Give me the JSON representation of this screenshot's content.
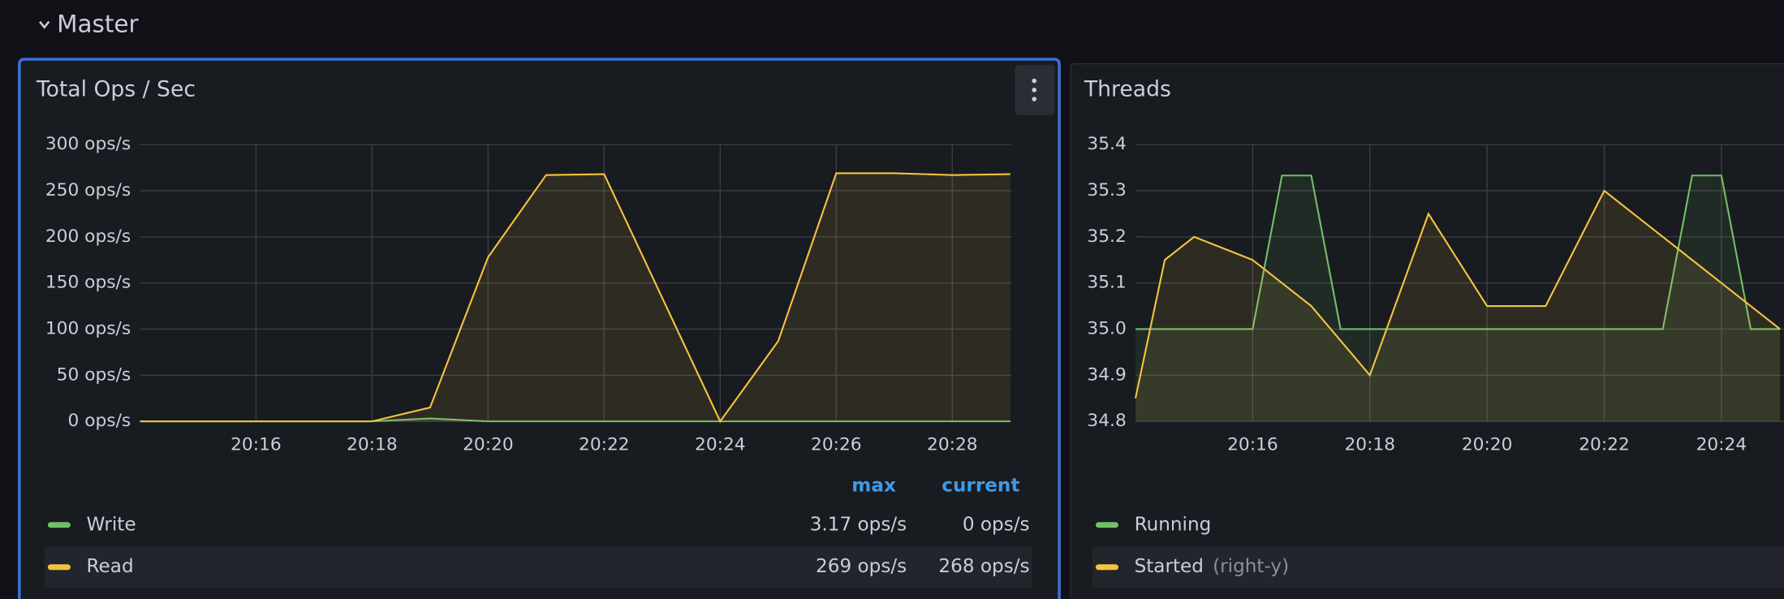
{
  "section_title": "Master",
  "chart_data": [
    {
      "type": "line",
      "title": "Total Ops / Sec",
      "categories": [
        null,
        null,
        "20:16",
        null,
        "20:18",
        null,
        "20:20",
        null,
        "20:22",
        null,
        "20:24",
        null,
        "20:26",
        null,
        "20:28",
        null
      ],
      "ylim": [
        0,
        300
      ],
      "yticks": [
        {
          "value": 0,
          "label": "0 ops/s"
        },
        {
          "value": 50,
          "label": "50 ops/s"
        },
        {
          "value": 100,
          "label": "100 ops/s"
        },
        {
          "value": 150,
          "label": "150 ops/s"
        },
        {
          "value": 200,
          "label": "200 ops/s"
        },
        {
          "value": 250,
          "label": "250 ops/s"
        },
        {
          "value": 300,
          "label": "300 ops/s"
        }
      ],
      "grid": true,
      "legend_columns": [
        "max",
        "current"
      ],
      "series": [
        {
          "name": "Write",
          "color": "#73bf69",
          "values": [
            0,
            0,
            0,
            0,
            0,
            3.17,
            0,
            0,
            0,
            0,
            0,
            0,
            0,
            0,
            0,
            0
          ],
          "stats": {
            "values": [
              3.17,
              0
            ],
            "labels": [
              "3.17 ops/s",
              "0 ops/s"
            ]
          }
        },
        {
          "name": "Read",
          "color": "#f5c342",
          "values": [
            0,
            0,
            0,
            0,
            0,
            15,
            178,
            267,
            268,
            134,
            0,
            87,
            269,
            269,
            267,
            268
          ],
          "stats": {
            "values": [
              269,
              268
            ],
            "labels": [
              "269 ops/s",
              "268 ops/s"
            ]
          }
        }
      ]
    },
    {
      "type": "line",
      "title": "Threads",
      "categories": [
        null,
        null,
        null,
        null,
        "20:16",
        null,
        null,
        null,
        "20:18",
        null,
        null,
        null,
        "20:20",
        null,
        null,
        null,
        "20:22",
        null,
        null,
        null,
        "20:24",
        null,
        null
      ],
      "ylim": [
        34.8,
        35.4
      ],
      "yticks": [
        34.8,
        34.9,
        {
          "value": 35,
          "label": "35.0"
        },
        35.1,
        35.2,
        35.3,
        35.4
      ],
      "y2lim": [
        34.8,
        35.4
      ],
      "grid": true,
      "series": [
        {
          "name": "Running",
          "color": "#73bf69",
          "values": [
            35,
            35,
            35,
            35,
            35,
            35.333,
            35.333,
            35,
            35,
            35,
            35,
            35,
            35,
            35,
            35,
            35,
            35,
            35,
            35,
            35.333,
            35.333,
            35,
            35
          ]
        },
        {
          "name": "Started",
          "axis": "y2",
          "axis_note": "(right-y)",
          "color": "#f5c342",
          "values": [
            34.85,
            35.15,
            35.2,
            35.175,
            35.15,
            35.1,
            35.05,
            34.975,
            34.9,
            35.075,
            35.25,
            35.15,
            35.05,
            35.05,
            35.05,
            35.175,
            35.3,
            35.25,
            35.2,
            35.15,
            35.1,
            35.05,
            35
          ]
        }
      ]
    }
  ]
}
